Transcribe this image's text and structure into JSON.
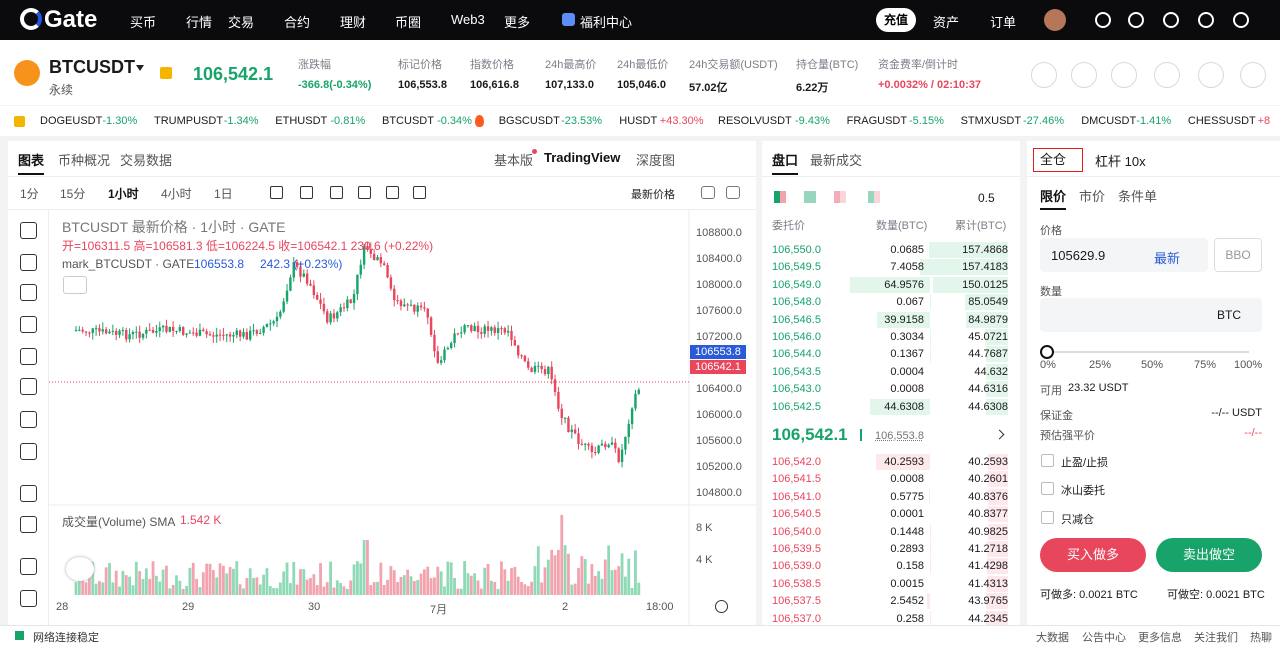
{
  "nav": {
    "logo": "Gate",
    "items": [
      "买币",
      "行情",
      "交易",
      "合约",
      "理财",
      "币圈",
      "Web3",
      "更多"
    ],
    "promo": "福利中心",
    "deposit": "充值",
    "right": [
      "资产",
      "订单"
    ]
  },
  "ticker": {
    "symbol": "BTCUSDT",
    "sub": "永续",
    "price": "106,542.1",
    "stats": [
      {
        "label": "涨跌幅",
        "value": "-366.8(-0.34%)"
      },
      {
        "label": "标记价格",
        "value": "106,553.8"
      },
      {
        "label": "指数价格",
        "value": "106,616.8"
      },
      {
        "label": "24h最高价",
        "value": "107,133.0"
      },
      {
        "label": "24h最低价",
        "value": "105,046.0"
      },
      {
        "label": "24h交易额(USDT)",
        "value": "57.02亿"
      },
      {
        "label": "持仓量(BTC)",
        "value": "6.22万"
      },
      {
        "label": "资金费率/倒计时",
        "value": "+0.0032% / 02:10:37"
      }
    ]
  },
  "marquee": [
    {
      "name": "DOGEUSDT",
      "change": "-1.30%"
    },
    {
      "name": "TRUMPUSDT",
      "change": "-1.34%"
    },
    {
      "name": "ETHUSDT",
      "change": "-0.81%"
    },
    {
      "name": "BTCUSDT",
      "change": "-0.34%"
    },
    {
      "name": "BGSCUSDT",
      "change": "-23.53%"
    },
    {
      "name": "HUSDT",
      "change": "+43.30%"
    },
    {
      "name": "RESOLVUSDT",
      "change": "-9.43%"
    },
    {
      "name": "FRAGUSDT",
      "change": "-5.15%"
    },
    {
      "name": "STMXUSDT",
      "change": "-27.46%"
    },
    {
      "name": "DMCUSDT",
      "change": "-1.41%"
    },
    {
      "name": "CHESSUSDT",
      "change": "+8"
    }
  ],
  "chart": {
    "tabs": [
      "图表",
      "币种概况",
      "交易数据"
    ],
    "views": [
      "基本版",
      "TradingView",
      "深度图"
    ],
    "intervals": [
      "1分",
      "15分",
      "1小时",
      "4小时",
      "1日"
    ],
    "price_mode": "最新价格",
    "title": "BTCUSDT 最新价格 · 1小时 · GATE",
    "ohlc": "开=106311.5 高=106581.3 低=106224.5 收=106542.1 230.6 (+0.22%)",
    "mark_name": "mark_BTCUSDT · GATE",
    "mark_price": "106553.8",
    "mark_change": "242.3 (+0.23%)",
    "price_axis": [
      "108800.0",
      "108400.0",
      "108000.0",
      "107600.0",
      "107200.0",
      "106400.0",
      "106000.0",
      "105600.0",
      "105200.0",
      "104800.0"
    ],
    "badge_mark": "106553.8",
    "badge_last": "106542.1",
    "volume_title": "成交量(Volume) SMA",
    "volume_value": "1.542 K",
    "volume_axis": [
      "8 K",
      "4 K"
    ],
    "time_axis": [
      "28",
      "29",
      "30",
      "7月",
      "2",
      "18:00"
    ]
  },
  "orderbook": {
    "tabs": [
      "盘口",
      "最新成交"
    ],
    "step": "0.5",
    "headers": [
      "委托价",
      "数量(BTC)",
      "累计(BTC)"
    ],
    "asks": [
      [
        "106,550.0",
        "0.0685",
        "157.4868"
      ],
      [
        "106,549.5",
        "7.4058",
        "157.4183"
      ],
      [
        "106,549.0",
        "64.9576",
        "150.0125"
      ],
      [
        "106,548.0",
        "0.067",
        "85.0549"
      ],
      [
        "106,546.5",
        "39.9158",
        "84.9879"
      ],
      [
        "106,546.0",
        "0.3034",
        "45.0721"
      ],
      [
        "106,544.0",
        "0.1367",
        "44.7687"
      ],
      [
        "106,543.5",
        "0.0004",
        "44.632"
      ],
      [
        "106,543.0",
        "0.0008",
        "44.6316"
      ],
      [
        "106,542.5",
        "44.6308",
        "44.6308"
      ]
    ],
    "last": "106,542.1",
    "mark": "106,553.8",
    "bids": [
      [
        "106,542.0",
        "40.2593",
        "40.2593"
      ],
      [
        "106,541.5",
        "0.0008",
        "40.2601"
      ],
      [
        "106,541.0",
        "0.5775",
        "40.8376"
      ],
      [
        "106,540.5",
        "0.0001",
        "40.8377"
      ],
      [
        "106,540.0",
        "0.1448",
        "40.9825"
      ],
      [
        "106,539.5",
        "0.2893",
        "41.2718"
      ],
      [
        "106,539.0",
        "0.158",
        "41.4298"
      ],
      [
        "106,538.5",
        "0.0015",
        "41.4313"
      ],
      [
        "106,537.5",
        "2.5452",
        "43.9765"
      ],
      [
        "106,537.0",
        "0.258",
        "44.2345"
      ]
    ]
  },
  "form": {
    "margin_mode": "全仓",
    "leverage": "杠杆 10x",
    "order_types": [
      "限价",
      "市价",
      "条件单"
    ],
    "price_label": "价格",
    "price": "105629.9",
    "latest": "最新",
    "bbo": "BBO",
    "qty_label": "数量",
    "qty_unit": "BTC",
    "percents": [
      "0%",
      "25%",
      "50%",
      "75%",
      "100%"
    ],
    "avail_label": "可用",
    "avail": "23.32 USDT",
    "margin_label": "保证金",
    "margin": "--/-- USDT",
    "liq_label": "预估强平价",
    "liq": "--/--",
    "options": [
      "止盈/止损",
      "冰山委托",
      "只减仓"
    ],
    "buy": "买入做多",
    "sell": "卖出做空",
    "max_long": "可做多: 0.0021 BTC",
    "max_short": "可做空: 0.0021 BTC"
  },
  "footer": {
    "status": "网络连接稳定",
    "links": [
      "大数据",
      "公告中心",
      "更多信息",
      "关注我们",
      "热聊"
    ]
  }
}
